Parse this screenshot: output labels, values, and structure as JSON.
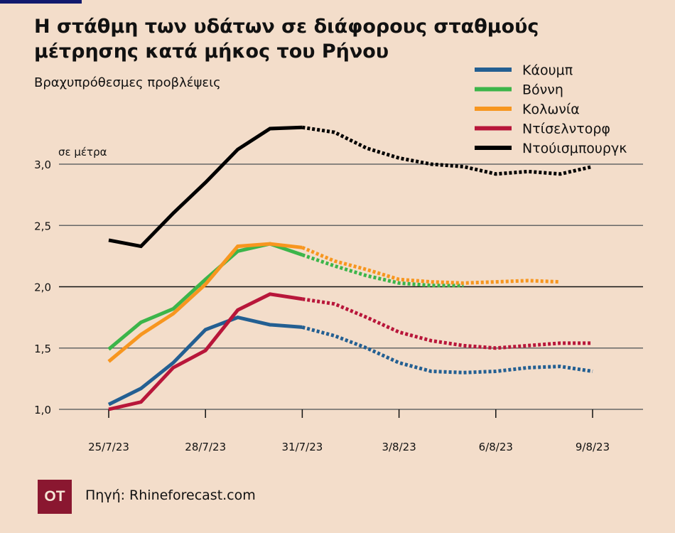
{
  "title": "Η στάθμη των υδάτων σε διάφορους σταθμούς μέτρησης κατά μήκος του Ρήνου",
  "subtitle": "Βραχυπρόθεσμες προβλέψεις",
  "footer": {
    "logo": "OT",
    "source": "Πηγή: Rhineforecast.com"
  },
  "colors": {
    "background": "#f3ddca",
    "accent_bar": "#111a6e",
    "logo_bg": "#8a1730"
  },
  "chart_data": {
    "type": "line",
    "title": "Η στάθμη των υδάτων σε διάφορους σταθμούς μέτρησης κατά μήκος του Ρήνου",
    "subtitle": "Βραχυπρόθεσμες προβλέψεις",
    "ylabel": "σε μέτρα",
    "xlabel": "",
    "ylim": [
      1.0,
      3.0
    ],
    "yticks": [
      "1,0",
      "1,5",
      "2,0",
      "2,5",
      "3,0"
    ],
    "ytick_values": [
      1.0,
      1.5,
      2.0,
      2.5,
      3.0
    ],
    "x": [
      "25/7/23",
      "26/7/23",
      "27/7/23",
      "28/7/23",
      "29/7/23",
      "30/7/23",
      "31/7/23",
      "1/8/23",
      "2/8/23",
      "3/8/23",
      "4/8/23",
      "5/8/23",
      "6/8/23",
      "7/8/23",
      "8/8/23",
      "9/8/23"
    ],
    "xticks": [
      "25/7/23",
      "28/7/23",
      "31/7/23",
      "3/8/23",
      "6/8/23",
      "9/8/23"
    ],
    "grid": "horizontal",
    "legend_position": "top-right",
    "style_note_solid": "observed",
    "style_note_dotted": "forecast",
    "series": [
      {
        "name": "Κάουμπ",
        "color": "#235f92",
        "observed": [
          1.04,
          1.17,
          1.38,
          1.65,
          1.75,
          1.69,
          1.67
        ],
        "forecast": [
          null,
          null,
          null,
          null,
          null,
          null,
          1.67,
          1.6,
          1.5,
          1.38,
          1.31,
          1.3,
          1.31,
          1.34,
          1.35,
          1.31
        ]
      },
      {
        "name": "Βόννη",
        "color": "#3cb54a",
        "observed": [
          1.49,
          1.71,
          1.82,
          2.06,
          2.29,
          2.35,
          2.26
        ],
        "forecast": [
          null,
          null,
          null,
          null,
          null,
          null,
          2.26,
          2.17,
          2.09,
          2.03,
          2.01,
          2.01,
          null,
          null,
          null,
          null
        ]
      },
      {
        "name": "Κολωνία",
        "color": "#f7961f",
        "observed": [
          1.39,
          1.61,
          1.78,
          2.02,
          2.33,
          2.35,
          2.32
        ],
        "forecast": [
          null,
          null,
          null,
          null,
          null,
          null,
          2.32,
          2.21,
          2.14,
          2.06,
          2.04,
          2.03,
          2.04,
          2.05,
          2.04,
          null
        ]
      },
      {
        "name": "Ντίσελντορφ",
        "color": "#b8163a",
        "observed": [
          1.0,
          1.06,
          1.34,
          1.48,
          1.81,
          1.94,
          1.9
        ],
        "forecast": [
          null,
          null,
          null,
          null,
          null,
          null,
          1.9,
          1.86,
          1.75,
          1.63,
          1.56,
          1.52,
          1.5,
          1.52,
          1.54,
          1.54
        ]
      },
      {
        "name": "Ντούισμπουργκ",
        "color": "#000000",
        "observed": [
          2.38,
          2.33,
          2.6,
          2.85,
          3.12,
          3.29,
          3.3
        ],
        "forecast": [
          null,
          null,
          null,
          null,
          null,
          null,
          3.3,
          3.26,
          3.13,
          3.05,
          3.0,
          2.98,
          2.92,
          2.94,
          2.92,
          2.98
        ]
      }
    ]
  }
}
